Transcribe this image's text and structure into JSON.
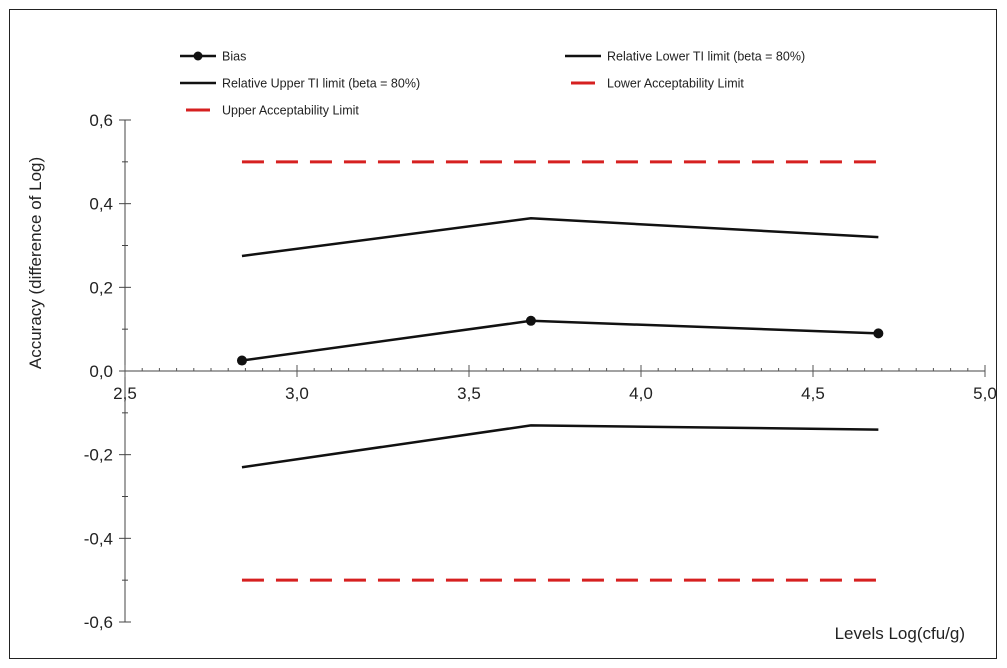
{
  "chart_data": {
    "type": "line",
    "title": "",
    "xlabel": "Levels Log(cfu/g)",
    "ylabel": "Accuracy (difference of  Log)",
    "xlim": [
      2.5,
      5.0
    ],
    "ylim": [
      -0.6,
      0.6
    ],
    "xticks": [
      2.5,
      3.0,
      3.5,
      4.0,
      4.5,
      5.0
    ],
    "xtick_labels": [
      "2,5",
      "3,0",
      "3,5",
      "4,0",
      "4,5",
      "5,0"
    ],
    "yticks": [
      0.6,
      0.4,
      0.2,
      0.0,
      -0.2,
      -0.4,
      -0.6
    ],
    "ytick_labels": [
      "0,6",
      "0,4",
      "0,2",
      "0,0",
      "-0,2",
      "-0,4",
      "-0,6"
    ],
    "grid": false,
    "legend_position": "top",
    "series": [
      {
        "name": "Bias",
        "x": [
          2.84,
          3.68,
          4.69
        ],
        "y": [
          0.025,
          0.12,
          0.09
        ],
        "color": "#111111",
        "style": "solid",
        "markers": true
      },
      {
        "name": "Relative Lower TI limit (beta = 80%)",
        "x": [
          2.84,
          3.68,
          4.69
        ],
        "y": [
          -0.23,
          -0.13,
          -0.14
        ],
        "color": "#111111",
        "style": "solid",
        "markers": false
      },
      {
        "name": "Relative Upper TI limit (beta = 80%)",
        "x": [
          2.84,
          3.68,
          4.69
        ],
        "y": [
          0.275,
          0.365,
          0.32
        ],
        "color": "#111111",
        "style": "solid",
        "markers": false
      },
      {
        "name": "Lower Acceptability Limit",
        "x": [
          2.84,
          4.69
        ],
        "y": [
          -0.5,
          -0.5
        ],
        "color": "#d62020",
        "style": "dashed",
        "markers": false
      },
      {
        "name": "Upper Acceptability Limit",
        "x": [
          2.84,
          4.69
        ],
        "y": [
          0.5,
          0.5
        ],
        "color": "#d62020",
        "style": "dashed",
        "markers": false
      }
    ]
  }
}
